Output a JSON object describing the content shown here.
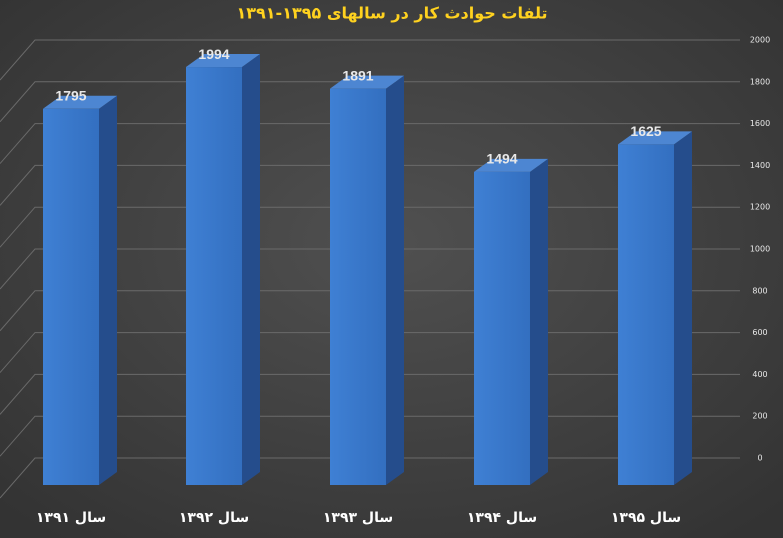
{
  "chart_data": {
    "type": "bar3d",
    "title": "تلفات حوادث کار در سالهای ۱۳۹۵-۱۳۹۱",
    "categories": [
      "سال ۱۳۹۱",
      "سال ۱۳۹۲",
      "سال ۱۳۹۳",
      "سال ۱۳۹۴",
      "سال ۱۳۹۵"
    ],
    "values": [
      1795,
      1994,
      1891,
      1494,
      1625
    ],
    "color": "#3a7bd0",
    "ylim": [
      0,
      2000
    ],
    "yticks": [
      0,
      200,
      400,
      600,
      800,
      1000,
      1200,
      1400,
      1600,
      1800,
      2000
    ],
    "grid": true
  }
}
